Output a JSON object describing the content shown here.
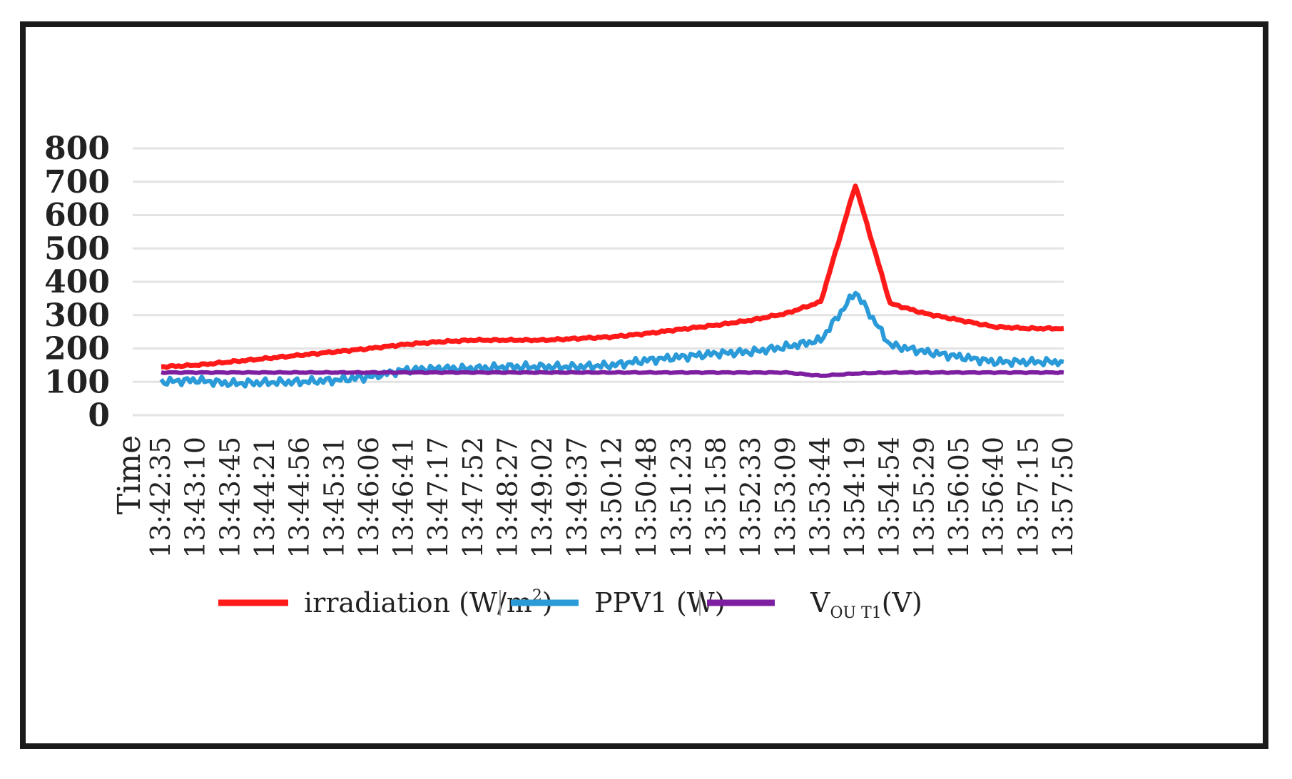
{
  "chart_data": {
    "type": "line",
    "title": "",
    "xlabel": "Time",
    "ylabel": "",
    "ylim": [
      0,
      800
    ],
    "yticks": [
      "0",
      "100",
      "200",
      "300",
      "400",
      "500",
      "600",
      "700",
      "800"
    ],
    "grid": true,
    "legend_position": "bottom",
    "categories": [
      "13:42:35",
      "13:43:10",
      "13:43:45",
      "13:44:21",
      "13:44:56",
      "13:45:31",
      "13:46:06",
      "13:46:41",
      "13:47:17",
      "13:47:52",
      "13:48:27",
      "13:49:02",
      "13:49:37",
      "13:50:12",
      "13:50:48",
      "13:51:23",
      "13:51:58",
      "13:52:33",
      "13:53:09",
      "13:53:44",
      "13:54:19",
      "13:54:54",
      "13:55:29",
      "13:56:05",
      "13:56:40",
      "13:57:15",
      "13:57:50"
    ],
    "series": [
      {
        "name": "irradiation (W/m",
        "name_sup": "2",
        "name_suffix": ")",
        "color": "#ff1a1a",
        "values": [
          145,
          150,
          160,
          170,
          180,
          190,
          200,
          212,
          220,
          225,
          225,
          225,
          230,
          235,
          245,
          258,
          270,
          285,
          305,
          340,
          690,
          335,
          305,
          285,
          265,
          260,
          260
        ]
      },
      {
        "name": "PPV1 (W)",
        "color": "#2a9ad8",
        "values": [
          100,
          105,
          95,
          98,
          100,
          105,
          115,
          135,
          140,
          140,
          145,
          145,
          145,
          150,
          165,
          175,
          185,
          190,
          205,
          225,
          370,
          210,
          190,
          175,
          160,
          160,
          160
        ]
      },
      {
        "name": "V",
        "name_sub": "OU T1",
        "name_suffix": "(V)",
        "color": "#7d1fa0",
        "values": [
          128,
          128,
          128,
          128,
          128,
          128,
          128,
          128,
          128,
          128,
          128,
          128,
          128,
          128,
          128,
          128,
          128,
          128,
          128,
          118,
          125,
          128,
          128,
          128,
          128,
          128,
          128
        ]
      }
    ]
  }
}
